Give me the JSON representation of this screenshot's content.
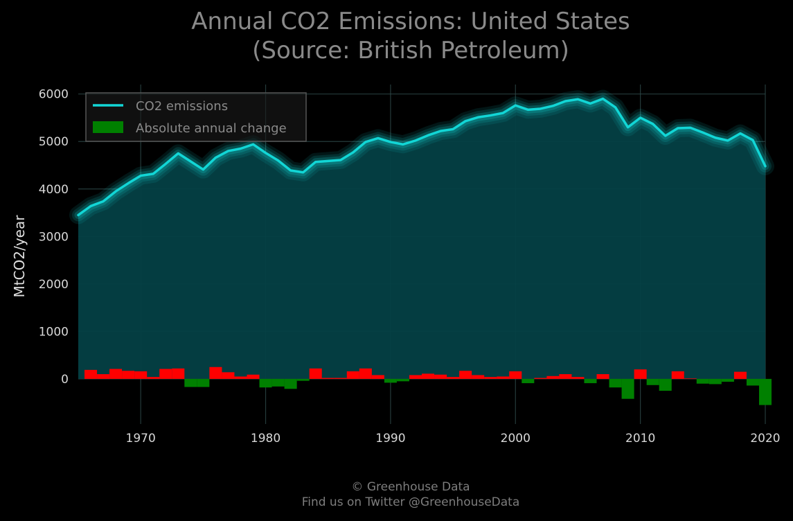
{
  "title": {
    "line1": "Annual CO2 Emissions: United States",
    "line2": "(Source: British Petroleum)"
  },
  "footer": {
    "line1": "© Greenhouse Data",
    "line2": "Find us on Twitter @GreenhouseData"
  },
  "colors": {
    "background": "#000000",
    "line": "#12d6d6",
    "fill": "#044044",
    "positive_change": "#ff0000",
    "negative_change": "#008000",
    "grid": "#2e4a4a",
    "text": "#8a8a8a"
  },
  "chart_data": {
    "type": "line",
    "title": "Annual CO2 Emissions: United States\n(Source: British Petroleum)",
    "xlabel": "",
    "ylabel": "MtCO2/year",
    "xlim": [
      1965,
      2020
    ],
    "ylim": [
      -950,
      6200
    ],
    "xticks": [
      1970,
      1980,
      1990,
      2000,
      2010,
      2020
    ],
    "yticks": [
      0,
      1000,
      2000,
      3000,
      4000,
      5000,
      6000
    ],
    "grid": true,
    "legend": {
      "position": "top-left",
      "entries": [
        "CO2 emissions",
        "Absolute annual change"
      ]
    },
    "x": [
      1965,
      1966,
      1967,
      1968,
      1969,
      1970,
      1971,
      1972,
      1973,
      1974,
      1975,
      1976,
      1977,
      1978,
      1979,
      1980,
      1981,
      1982,
      1983,
      1984,
      1985,
      1986,
      1987,
      1988,
      1989,
      1990,
      1991,
      1992,
      1993,
      1994,
      1995,
      1996,
      1997,
      1998,
      1999,
      2000,
      2001,
      2002,
      2003,
      2004,
      2005,
      2006,
      2007,
      2008,
      2009,
      2010,
      2011,
      2012,
      2013,
      2014,
      2015,
      2016,
      2017,
      2018,
      2019,
      2020
    ],
    "series": [
      {
        "name": "CO2 emissions",
        "type": "line",
        "values": [
          3450,
          3640,
          3740,
          3950,
          4120,
          4280,
          4320,
          4530,
          4750,
          4580,
          4410,
          4660,
          4800,
          4850,
          4940,
          4760,
          4600,
          4390,
          4350,
          4570,
          4590,
          4610,
          4770,
          4990,
          5070,
          4990,
          4940,
          5020,
          5130,
          5220,
          5260,
          5430,
          5510,
          5550,
          5600,
          5760,
          5670,
          5690,
          5750,
          5850,
          5890,
          5800,
          5900,
          5720,
          5300,
          5500,
          5370,
          5120,
          5280,
          5290,
          5190,
          5080,
          5020,
          5170,
          5030,
          4480
        ]
      },
      {
        "name": "Absolute annual change",
        "type": "bar",
        "values": [
          null,
          190,
          100,
          210,
          170,
          160,
          40,
          210,
          220,
          -170,
          -170,
          250,
          140,
          50,
          90,
          -180,
          -160,
          -210,
          -40,
          220,
          20,
          20,
          160,
          220,
          80,
          -80,
          -50,
          80,
          110,
          90,
          40,
          170,
          80,
          40,
          50,
          160,
          -90,
          20,
          60,
          100,
          40,
          -90,
          100,
          -180,
          -420,
          200,
          -130,
          -250,
          160,
          10,
          -100,
          -110,
          -60,
          150,
          -140,
          -550
        ]
      }
    ]
  }
}
